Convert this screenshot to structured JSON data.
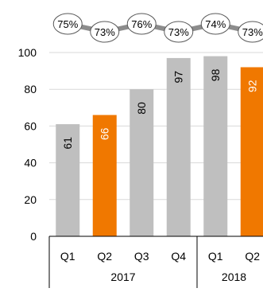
{
  "chart_data": {
    "type": "bar",
    "categories": [
      "Q1",
      "Q2",
      "Q3",
      "Q4",
      "Q1",
      "Q2"
    ],
    "groups": [
      {
        "label": "2017",
        "count": 4
      },
      {
        "label": "2018",
        "count": 2
      }
    ],
    "values": [
      61,
      66,
      80,
      97,
      98,
      92
    ],
    "bar_colors": [
      "#bfbfbf",
      "#f07800",
      "#bfbfbf",
      "#bfbfbf",
      "#bfbfbf",
      "#f07800"
    ],
    "data_label_colors": [
      "#000000",
      "#ffffff",
      "#000000",
      "#000000",
      "#000000",
      "#ffffff"
    ],
    "percent_labels": [
      "75%",
      "73%",
      "76%",
      "73%",
      "74%",
      "73%"
    ],
    "yticks": [
      "0",
      "20",
      "40",
      "60",
      "80",
      "100"
    ],
    "ytick_values": [
      0,
      20,
      40,
      60,
      80,
      100
    ],
    "ylim": [
      0,
      100
    ],
    "grid": "horizontal",
    "title": "",
    "xlabel": "",
    "ylabel": "",
    "legend": "none"
  }
}
